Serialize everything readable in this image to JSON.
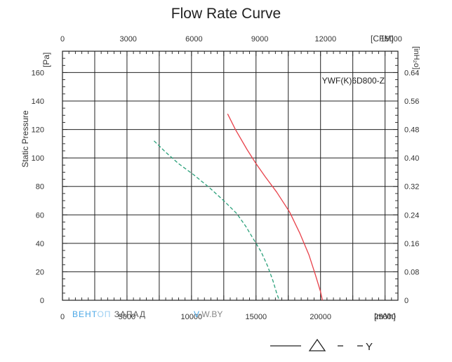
{
  "chart_data": {
    "type": "line",
    "title": "Flow Rate Curve",
    "model": "YWF(K)6D800-Z",
    "ylabel": "Static Pressure",
    "y_unit_left": "[Pa]",
    "y_unit_right": "[inH₂o]",
    "x_unit_bottom": "[m³/h]",
    "x_unit_top": "[CFM]",
    "xlim": [
      0,
      26000
    ],
    "ylim": [
      0,
      180
    ],
    "x_ticks_bottom": [
      "0",
      "5000",
      "10000",
      "15000",
      "20000",
      "25000"
    ],
    "x_tick_values_bottom": [
      0,
      5000,
      10000,
      15000,
      20000,
      25000
    ],
    "x_ticks_top": [
      "0",
      "3000",
      "6000",
      "9000",
      "12000",
      "15000"
    ],
    "x_tick_values_top": [
      0,
      5097,
      10194,
      15291,
      20388,
      25485
    ],
    "y_ticks_left": [
      "0",
      "20",
      "40",
      "60",
      "80",
      "100",
      "120",
      "140",
      "160"
    ],
    "y_tick_values_left": [
      0,
      20,
      40,
      60,
      80,
      100,
      120,
      140,
      160
    ],
    "y_ticks_right": [
      "0",
      "0.08",
      "0.16",
      "0.24",
      "0.32",
      "0.40",
      "0.48",
      "0.56",
      "0.64"
    ],
    "grid": true,
    "series": [
      {
        "name": "△",
        "style": "solid",
        "color": "#e8414a",
        "points": [
          [
            12800,
            131
          ],
          [
            13400,
            120
          ],
          [
            14300,
            106
          ],
          [
            15000,
            96
          ],
          [
            15700,
            87
          ],
          [
            16600,
            76
          ],
          [
            17600,
            62
          ],
          [
            18400,
            47
          ],
          [
            19100,
            32
          ],
          [
            19600,
            18
          ],
          [
            20000,
            6
          ],
          [
            20150,
            0
          ]
        ]
      },
      {
        "name": "Y",
        "style": "dashed",
        "color": "#2aa07a",
        "points": [
          [
            7100,
            112
          ],
          [
            8000,
            104
          ],
          [
            9000,
            96
          ],
          [
            10200,
            88
          ],
          [
            11400,
            79
          ],
          [
            12500,
            70
          ],
          [
            13500,
            61
          ],
          [
            14200,
            52
          ],
          [
            14800,
            43
          ],
          [
            15400,
            34
          ],
          [
            15900,
            24
          ],
          [
            16300,
            14
          ],
          [
            16600,
            5
          ],
          [
            16800,
            0
          ]
        ]
      }
    ],
    "legend": {
      "position": "bottom-right",
      "solid_label": "△",
      "dashed_label": "Y"
    }
  },
  "watermark": {
    "brand": "ВЕНТ",
    "brand_rest": "ОП",
    "word2": "ЗАПАД",
    "site_v": "V",
    "site": "-W.BY"
  }
}
